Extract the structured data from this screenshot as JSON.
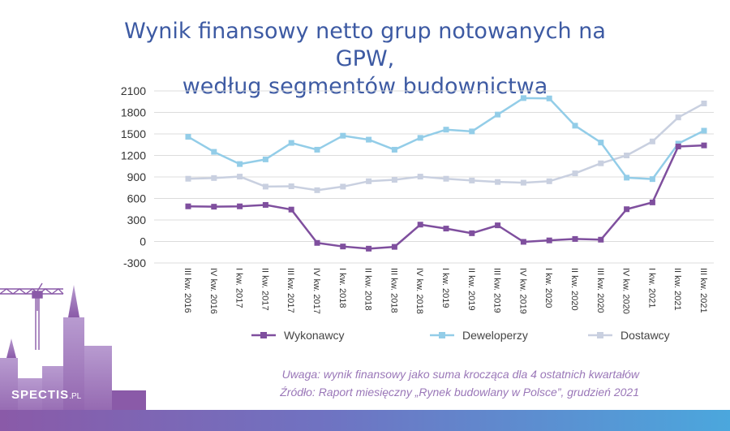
{
  "title_line1": "Wynik finansowy netto grup notowanych na GPW,",
  "title_line2": "według segmentów budownictwa",
  "note_line1": "Uwaga: wynik finansowy jako suma krocząca dla 4 ostatnich kwartałów",
  "note_line2": "Źródło: Raport miesięczny „Rynek budowlany w Polsce”, grudzień 2021",
  "logo": {
    "main": "SPECTIS",
    "suffix": ".PL"
  },
  "chart_data": {
    "type": "line",
    "categories": [
      "III kw. 2016",
      "IV kw. 2016",
      "I kw. 2017",
      "II kw. 2017",
      "III kw. 2017",
      "IV kw. 2017",
      "I kw. 2018",
      "II kw. 2018",
      "III kw. 2018",
      "IV kw. 2018",
      "I kw. 2019",
      "II kw. 2019",
      "III kw. 2019",
      "IV kw. 2019",
      "I kw. 2020",
      "II kw. 2020",
      "III kw. 2020",
      "IV kw. 2020",
      "I kw. 2021",
      "II kw. 2021",
      "III kw. 2021"
    ],
    "ylim": [
      -300,
      2100
    ],
    "yticks": [
      -300,
      0,
      300,
      600,
      900,
      1200,
      1500,
      1800,
      2100
    ],
    "grid": true,
    "legend_position": "bottom",
    "series": [
      {
        "name": "Wykonawcy",
        "color": "#7f4f9e",
        "values": [
          490,
          485,
          490,
          510,
          445,
          -20,
          -70,
          -100,
          -75,
          235,
          180,
          115,
          225,
          -5,
          15,
          35,
          25,
          450,
          545,
          1325,
          1340
        ]
      },
      {
        "name": "Deweloperzy",
        "color": "#93cde8",
        "values": [
          1460,
          1250,
          1080,
          1145,
          1375,
          1280,
          1475,
          1420,
          1280,
          1445,
          1560,
          1535,
          1770,
          2000,
          1995,
          1615,
          1380,
          890,
          870,
          1365,
          1545
        ]
      },
      {
        "name": "Dostawcy",
        "color": "#c9d0e0",
        "values": [
          875,
          885,
          905,
          765,
          770,
          715,
          765,
          840,
          860,
          905,
          875,
          850,
          830,
          820,
          840,
          950,
          1090,
          1200,
          1395,
          1730,
          1925
        ]
      }
    ]
  }
}
